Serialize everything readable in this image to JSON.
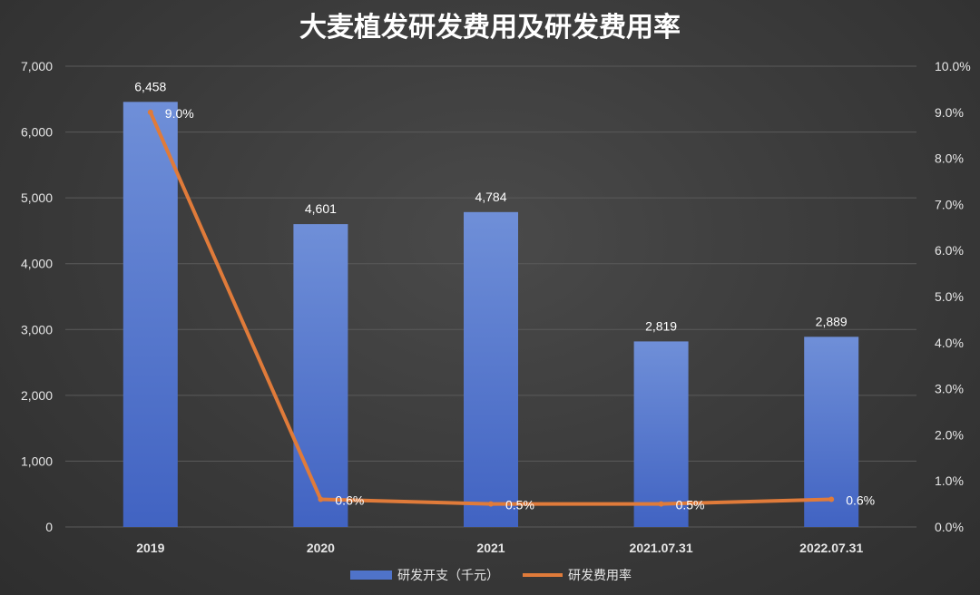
{
  "chart_data": {
    "type": "bar+line",
    "title": "大麦植发研发费用及研发费用率",
    "categories": [
      "2019",
      "2020",
      "2021",
      "2021.07.31",
      "2022.07.31"
    ],
    "series": [
      {
        "name": "研发开支（千元）",
        "type": "bar",
        "axis": "left",
        "values": [
          6458,
          4601,
          4784,
          2819,
          2889
        ],
        "labels": [
          "6,458",
          "4,601",
          "4,784",
          "2,819",
          "2,889"
        ]
      },
      {
        "name": "研发费用率",
        "type": "line",
        "axis": "right",
        "values": [
          9.0,
          0.6,
          0.5,
          0.5,
          0.6
        ],
        "labels": [
          "9.0%",
          "0.6%",
          "0.5%",
          "0.5%",
          "0.6%"
        ]
      }
    ],
    "y_left": {
      "range": [
        0,
        7000
      ],
      "ticks": [
        0,
        1000,
        2000,
        3000,
        4000,
        5000,
        6000,
        7000
      ],
      "tick_labels": [
        "0",
        "1,000",
        "2,000",
        "3,000",
        "4,000",
        "5,000",
        "6,000",
        "7,000"
      ]
    },
    "y_right": {
      "range": [
        0,
        10
      ],
      "ticks": [
        0,
        1,
        2,
        3,
        4,
        5,
        6,
        7,
        8,
        9,
        10
      ],
      "tick_labels": [
        "0.0%",
        "1.0%",
        "2.0%",
        "3.0%",
        "4.0%",
        "5.0%",
        "6.0%",
        "7.0%",
        "8.0%",
        "9.0%",
        "10.0%"
      ]
    },
    "grid": true,
    "legend": "bottom",
    "colors": {
      "bar": "#4f73c9",
      "line": "#e07b3a",
      "grid": "#5a5a5a"
    }
  }
}
